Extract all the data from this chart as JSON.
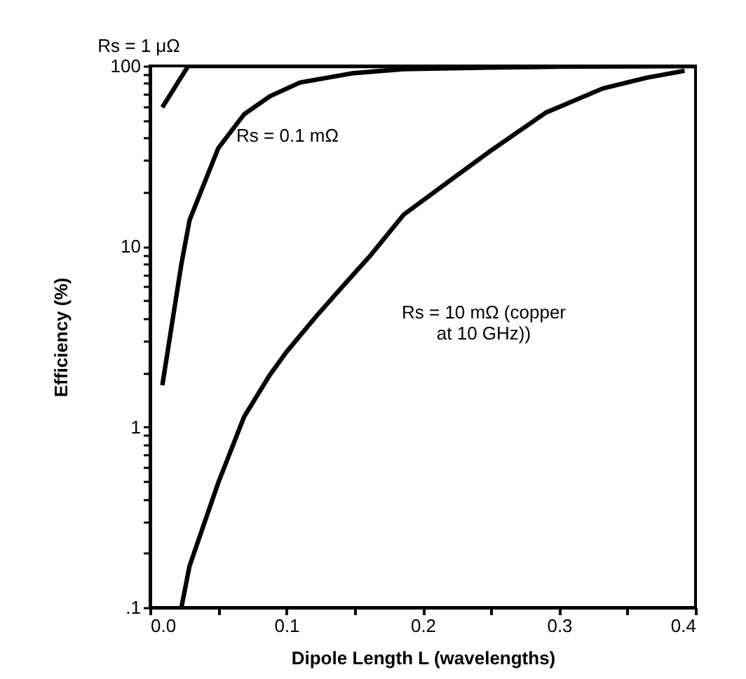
{
  "chart_data": {
    "type": "line",
    "xlabel": "Dipole Length L (wavelengths)",
    "ylabel": "Efficiency  (%)",
    "log": "y",
    "xlim": [
      0,
      0.4
    ],
    "ylim": [
      0.1,
      100
    ],
    "xticks": [
      {
        "value": 0,
        "label": "0.0"
      },
      {
        "value": 0.05,
        "label": null
      },
      {
        "value": 0.1,
        "label": "0.1"
      },
      {
        "value": 0.15,
        "label": null
      },
      {
        "value": 0.2,
        "label": "0.2"
      },
      {
        "value": 0.25,
        "label": null
      },
      {
        "value": 0.3,
        "label": "0.3"
      },
      {
        "value": 0.35,
        "label": null
      },
      {
        "value": 0.4,
        "label": "0.4"
      }
    ],
    "yticks": [
      {
        "value": 0.1,
        "label": ".1"
      },
      {
        "value": 0.2,
        "label": null
      },
      {
        "value": 0.3,
        "label": null
      },
      {
        "value": 0.4,
        "label": null
      },
      {
        "value": 0.5,
        "label": null
      },
      {
        "value": 0.6,
        "label": null
      },
      {
        "value": 0.7,
        "label": null
      },
      {
        "value": 0.8,
        "label": null
      },
      {
        "value": 0.9,
        "label": null
      },
      1,
      {
        "value": 2,
        "label": null
      },
      {
        "value": 3,
        "label": null
      },
      {
        "value": 4,
        "label": null
      },
      {
        "value": 5,
        "label": null
      },
      {
        "value": 6,
        "label": null
      },
      {
        "value": 7,
        "label": null
      },
      {
        "value": 8,
        "label": null
      },
      {
        "value": 9,
        "label": null
      },
      10,
      {
        "value": 20,
        "label": null
      },
      {
        "value": 30,
        "label": null
      },
      {
        "value": 40,
        "label": null
      },
      {
        "value": 50,
        "label": null
      },
      {
        "value": 60,
        "label": null
      },
      {
        "value": 70,
        "label": null
      },
      {
        "value": 80,
        "label": null
      },
      {
        "value": 90,
        "label": null
      },
      100
    ],
    "grid": false,
    "legend": false,
    "marker": "none",
    "line_style": "solid",
    "series": [
      {
        "name": "Rs = 1 μΩ",
        "color": "#000000",
        "x": [
          0.009,
          0.028,
          0.1,
          0.2,
          0.3,
          0.4
        ],
        "values": [
          59,
          100,
          100,
          100,
          100,
          100
        ]
      },
      {
        "name": "Rs = 0.1 mΩ",
        "color": "#000000",
        "x": [
          0.009,
          0.023,
          0.029,
          0.05,
          0.069,
          0.088,
          0.11,
          0.148,
          0.186,
          0.25,
          0.3,
          0.4
        ],
        "values": [
          1.7,
          8,
          14,
          35,
          54,
          68,
          81,
          91,
          96,
          98,
          99,
          100
        ]
      },
      {
        "name": "Rs = 10 mΩ (copper\nat 10 GHz))",
        "color": "#000000",
        "x": [
          0.023,
          0.029,
          0.05,
          0.069,
          0.088,
          0.1,
          0.123,
          0.142,
          0.161,
          0.186,
          0.221,
          0.25,
          0.29,
          0.332,
          0.364,
          0.392
        ],
        "values": [
          0.1,
          0.17,
          0.49,
          1.14,
          1.95,
          2.6,
          4.2,
          6.1,
          8.8,
          15,
          23.5,
          34,
          55,
          75,
          86,
          94
        ]
      }
    ]
  }
}
